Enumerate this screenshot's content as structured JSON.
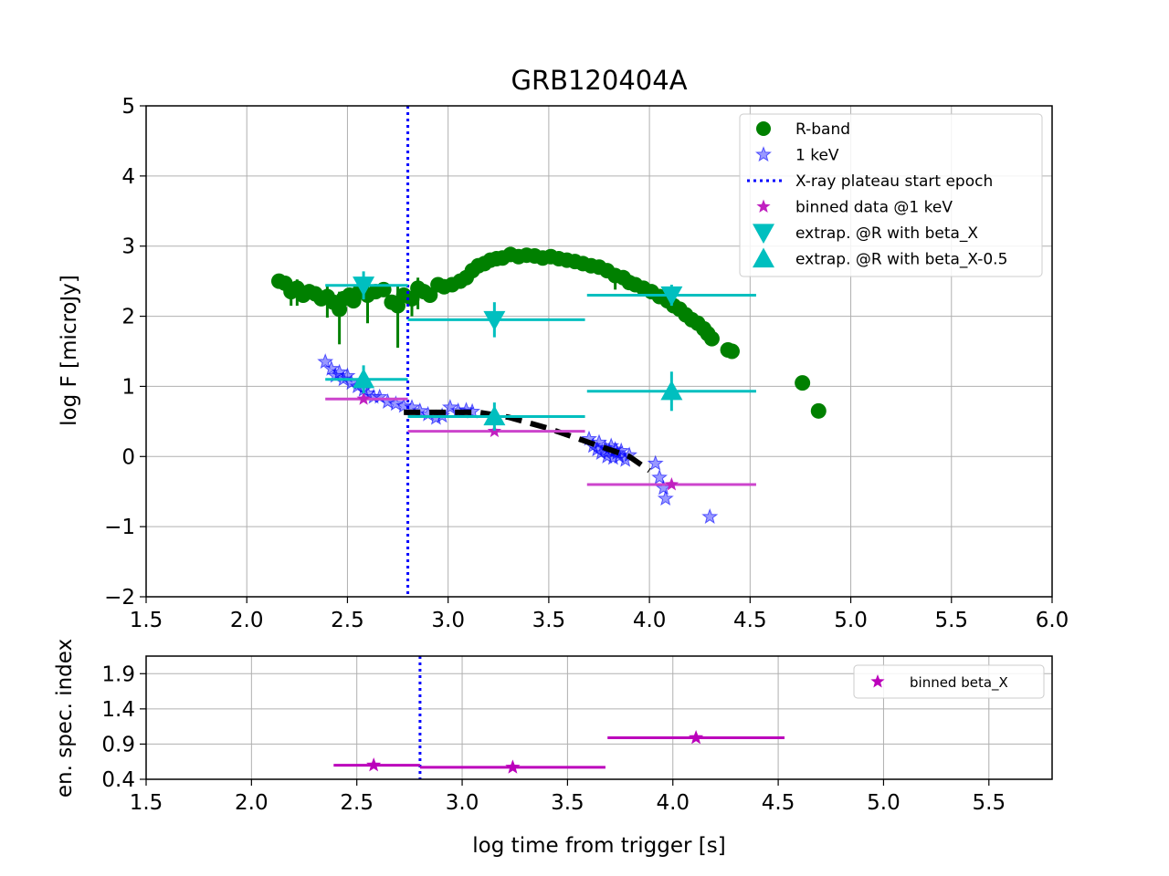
{
  "title": "GRB120404A",
  "colors": {
    "rband": "#008000",
    "xray": "#0000ff",
    "plateau": "#0000ff",
    "binned": "#c020c0",
    "binned_line": "#cc44cc",
    "extrap": "#00bfbf",
    "fit": "#000000",
    "beta": "#bb00bb",
    "grid": "#b0b0b0"
  },
  "chart_data": [
    {
      "type": "scatter",
      "name": "light-curve",
      "title": "GRB120404A",
      "xlabel": "",
      "ylabel": "log F [microJy]",
      "xlim": [
        1.5,
        6.0
      ],
      "ylim": [
        -2,
        5
      ],
      "xticks": [
        "1.5",
        "2.0",
        "2.5",
        "3.0",
        "3.5",
        "4.0",
        "4.5",
        "5.0",
        "5.5",
        "6.0"
      ],
      "xtick_values": [
        1.5,
        2.0,
        2.5,
        3.0,
        3.5,
        4.0,
        4.5,
        5.0,
        5.5,
        6.0
      ],
      "yticks": [
        "5",
        "4",
        "3",
        "2",
        "1",
        "0",
        "−1",
        "−2"
      ],
      "ytick_values": [
        5,
        4,
        3,
        2,
        1,
        0,
        -1,
        -2
      ],
      "grid": true,
      "legend_position": "top-right",
      "legend": [
        {
          "label": "R-band",
          "marker": "circle",
          "color": "#008000"
        },
        {
          "label": "1 keV",
          "marker": "star",
          "color": "#0000ff"
        },
        {
          "label": "X-ray plateau start epoch",
          "marker": "dotted-line",
          "color": "#0000ff"
        },
        {
          "label": "binned data @1 keV",
          "marker": "star",
          "color": "#c020c0"
        },
        {
          "label": "extrap. @R with beta_X",
          "marker": "triangle-down",
          "color": "#00bfbf"
        },
        {
          "label": "extrap. @R with beta_X-0.5",
          "marker": "triangle-up",
          "color": "#00bfbf"
        }
      ],
      "plateau_start": 2.8,
      "rband": [
        [
          2.16,
          2.5
        ],
        [
          2.19,
          2.47
        ],
        [
          2.22,
          2.35,
          0.2
        ],
        [
          2.25,
          2.4,
          0.25
        ],
        [
          2.28,
          2.3
        ],
        [
          2.31,
          2.35
        ],
        [
          2.34,
          2.32
        ],
        [
          2.37,
          2.25
        ],
        [
          2.4,
          2.28,
          0.3
        ],
        [
          2.43,
          2.2
        ],
        [
          2.46,
          2.1,
          0.5
        ],
        [
          2.48,
          2.25
        ],
        [
          2.51,
          2.3
        ],
        [
          2.53,
          2.22
        ],
        [
          2.56,
          2.35
        ],
        [
          2.6,
          2.3,
          0.4
        ],
        [
          2.64,
          2.35
        ],
        [
          2.68,
          2.38
        ],
        [
          2.72,
          2.2
        ],
        [
          2.75,
          2.15,
          0.6
        ],
        [
          2.78,
          2.3
        ],
        [
          2.82,
          2.25,
          0.25
        ],
        [
          2.85,
          2.4,
          0.3
        ],
        [
          2.88,
          2.35
        ],
        [
          2.91,
          2.3
        ],
        [
          2.95,
          2.45
        ],
        [
          2.98,
          2.42
        ],
        [
          3.02,
          2.45
        ],
        [
          3.06,
          2.5
        ],
        [
          3.09,
          2.55
        ],
        [
          3.12,
          2.65
        ],
        [
          3.15,
          2.72
        ],
        [
          3.18,
          2.75
        ],
        [
          3.21,
          2.8
        ],
        [
          3.24,
          2.82
        ],
        [
          3.27,
          2.83
        ],
        [
          3.31,
          2.88
        ],
        [
          3.35,
          2.85
        ],
        [
          3.39,
          2.87
        ],
        [
          3.43,
          2.86
        ],
        [
          3.47,
          2.83
        ],
        [
          3.51,
          2.85
        ],
        [
          3.55,
          2.82
        ],
        [
          3.59,
          2.8
        ],
        [
          3.63,
          2.78
        ],
        [
          3.67,
          2.75
        ],
        [
          3.71,
          2.72
        ],
        [
          3.75,
          2.7
        ],
        [
          3.79,
          2.65
        ],
        [
          3.83,
          2.58,
          0.2
        ],
        [
          3.87,
          2.55
        ],
        [
          3.9,
          2.48
        ],
        [
          3.93,
          2.45
        ],
        [
          3.97,
          2.4
        ],
        [
          4.01,
          2.35
        ],
        [
          4.05,
          2.28
        ],
        [
          4.09,
          2.22
        ],
        [
          4.12,
          2.15
        ],
        [
          4.15,
          2.1
        ],
        [
          4.18,
          2.02
        ],
        [
          4.21,
          1.95
        ],
        [
          4.24,
          1.9
        ],
        [
          4.27,
          1.82
        ],
        [
          4.29,
          1.75
        ],
        [
          4.31,
          1.68
        ],
        [
          4.39,
          1.52
        ],
        [
          4.41,
          1.5
        ],
        [
          4.76,
          1.05
        ],
        [
          4.84,
          0.65
        ]
      ],
      "xray": [
        [
          2.39,
          1.35
        ],
        [
          2.42,
          1.25
        ],
        [
          2.44,
          1.15
        ],
        [
          2.46,
          1.2
        ],
        [
          2.48,
          1.1
        ],
        [
          2.5,
          1.15
        ],
        [
          2.52,
          1.05
        ],
        [
          2.55,
          1.0
        ],
        [
          2.58,
          0.95
        ],
        [
          2.6,
          0.9
        ],
        [
          2.63,
          0.85
        ],
        [
          2.66,
          0.85
        ],
        [
          2.7,
          0.78
        ],
        [
          2.74,
          0.75
        ],
        [
          2.78,
          0.72
        ],
        [
          2.82,
          0.7
        ],
        [
          2.86,
          0.65
        ],
        [
          2.9,
          0.6
        ],
        [
          2.94,
          0.55
        ],
        [
          2.97,
          0.58
        ],
        [
          3.01,
          0.7
        ],
        [
          3.05,
          0.65
        ],
        [
          3.09,
          0.66
        ],
        [
          3.12,
          0.64
        ],
        [
          3.7,
          0.25
        ],
        [
          3.72,
          0.15
        ],
        [
          3.74,
          0.1
        ],
        [
          3.75,
          0.2
        ],
        [
          3.76,
          0.05
        ],
        [
          3.78,
          0.12
        ],
        [
          3.79,
          0.0
        ],
        [
          3.8,
          0.08
        ],
        [
          3.81,
          0.15
        ],
        [
          3.82,
          -0.02
        ],
        [
          3.83,
          0.1
        ],
        [
          3.84,
          0.05
        ],
        [
          3.85,
          0.0
        ],
        [
          3.86,
          0.08
        ],
        [
          3.88,
          -0.05
        ],
        [
          3.9,
          0.02
        ],
        [
          4.03,
          -0.1
        ],
        [
          4.05,
          -0.3
        ],
        [
          4.07,
          -0.45
        ],
        [
          4.08,
          -0.6
        ],
        [
          4.3,
          -0.86
        ]
      ],
      "fit": [
        [
          2.78,
          0.63
        ],
        [
          3.0,
          0.63
        ],
        [
          3.15,
          0.63
        ],
        [
          3.3,
          0.56
        ],
        [
          3.5,
          0.4
        ],
        [
          3.7,
          0.2
        ],
        [
          3.9,
          0.0
        ],
        [
          4.0,
          -0.2
        ]
      ],
      "binned_1keV": [
        {
          "x": 2.58,
          "y": 0.82,
          "xerr": [
            2.39,
            2.8
          ]
        },
        {
          "x": 3.23,
          "y": 0.36,
          "xerr": [
            2.8,
            3.68
          ]
        },
        {
          "x": 4.11,
          "y": -0.4,
          "xerr": [
            3.69,
            4.53
          ]
        }
      ],
      "extrap_beta_X": [
        {
          "x": 2.58,
          "y": 2.44,
          "yerr": 0.2,
          "xerr": [
            2.39,
            2.8
          ]
        },
        {
          "x": 3.23,
          "y": 1.95,
          "yerr": 0.25,
          "xerr": [
            2.8,
            3.68
          ]
        },
        {
          "x": 4.11,
          "y": 2.3,
          "yerr": 0.15,
          "xerr": [
            3.69,
            4.53
          ]
        }
      ],
      "extrap_beta_X_minus_0_5": [
        {
          "x": 2.58,
          "y": 1.1,
          "yerr": 0.2,
          "xerr": [
            2.39,
            2.8
          ]
        },
        {
          "x": 3.23,
          "y": 0.57,
          "yerr": 0.2,
          "xerr": [
            2.8,
            3.68
          ]
        },
        {
          "x": 4.11,
          "y": 0.93,
          "yerr": 0.28,
          "xerr": [
            3.69,
            4.53
          ]
        }
      ]
    },
    {
      "type": "scatter",
      "name": "spectral-index",
      "xlabel": "log time from trigger [s]",
      "ylabel": "en. spec. index",
      "xlim": [
        1.5,
        5.8
      ],
      "ylim": [
        0.4,
        2.15
      ],
      "xticks": [
        "1.5",
        "2.0",
        "2.5",
        "3.0",
        "3.5",
        "4.0",
        "4.5",
        "5.0",
        "5.5"
      ],
      "xtick_values": [
        1.5,
        2.0,
        2.5,
        3.0,
        3.5,
        4.0,
        4.5,
        5.0,
        5.5
      ],
      "yticks": [
        "1.9",
        "1.4",
        "0.9",
        "0.4"
      ],
      "ytick_values": [
        1.9,
        1.4,
        0.9,
        0.4
      ],
      "grid": true,
      "legend_position": "top-right",
      "legend": [
        {
          "label": "binned beta_X",
          "marker": "star",
          "color": "#bb00bb"
        }
      ],
      "plateau_start": 2.8,
      "binned_beta": [
        {
          "x": 2.58,
          "y": 0.6,
          "xerr": [
            2.39,
            2.8
          ]
        },
        {
          "x": 3.24,
          "y": 0.57,
          "xerr": [
            2.8,
            3.68
          ]
        },
        {
          "x": 4.11,
          "y": 0.99,
          "xerr": [
            3.69,
            4.53
          ]
        }
      ]
    }
  ]
}
